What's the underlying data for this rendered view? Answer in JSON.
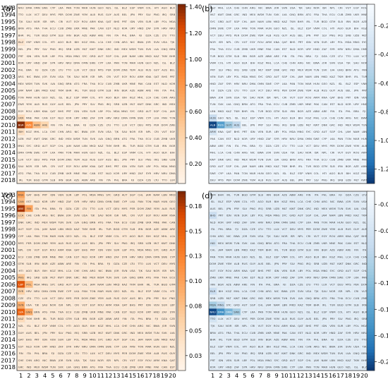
{
  "chart_data": [
    {
      "type": "heatmap",
      "panel_label": "(a)",
      "colormap": "Oranges",
      "colorbar_ticks": [
        "0.20",
        "0.40",
        "0.60",
        "0.80",
        "1.00",
        "1.20",
        "1.40"
      ],
      "colorbar_tick_values": [
        0.2,
        0.4,
        0.6,
        0.8,
        1.0,
        1.2,
        1.4
      ],
      "vmin": 0.05,
      "vmax": 1.42,
      "rows": [
        "1993",
        "1994",
        "1995",
        "1996",
        "1997",
        "1998",
        "1999",
        "2000",
        "2001",
        "2002",
        "2003",
        "2004",
        "2005",
        "2006",
        "2007",
        "2008",
        "2009",
        "2010",
        "2011",
        "2012",
        "2013",
        "2014",
        "2015",
        "2016",
        "2017",
        "2018"
      ],
      "cols": [
        "1",
        "2",
        "3",
        "4",
        "5",
        "6",
        "7",
        "8",
        "9",
        "10",
        "11",
        "12",
        "13",
        "14",
        "15",
        "16",
        "17",
        "18",
        "19",
        "20"
      ],
      "hot_cells": [
        {
          "row": "2010",
          "col": "1",
          "value": 1.4
        },
        {
          "row": "2010",
          "col": "2",
          "value": 0.9
        },
        {
          "row": "2010",
          "col": "3",
          "value": 0.55
        },
        {
          "row": "2010",
          "col": "4",
          "value": 0.4
        },
        {
          "row": "2009",
          "col": "1",
          "value": 0.35
        },
        {
          "row": "2011",
          "col": "1",
          "value": 0.3
        },
        {
          "row": "1998",
          "col": "1",
          "value": 0.25
        }
      ],
      "base_value": 0.12
    },
    {
      "type": "heatmap",
      "panel_label": "(b)",
      "colormap": "Blues_r",
      "colorbar_ticks": [
        "-0.20",
        "-0.40",
        "-0.60",
        "-0.80",
        "-1.00",
        "-1.20"
      ],
      "colorbar_tick_values": [
        -0.2,
        -0.4,
        -0.6,
        -0.8,
        -1.0,
        -1.2
      ],
      "vmin": -1.3,
      "vmax": -0.05,
      "rows": [
        "1993",
        "1994",
        "1995",
        "1996",
        "1997",
        "1998",
        "1999",
        "2000",
        "2001",
        "2002",
        "2003",
        "2004",
        "2005",
        "2006",
        "2007",
        "2008",
        "2009",
        "2010",
        "2011",
        "2012",
        "2013",
        "2014",
        "2015",
        "2016",
        "2017",
        "2018"
      ],
      "cols": [
        "1",
        "2",
        "3",
        "4",
        "5",
        "6",
        "7",
        "8",
        "9",
        "10",
        "11",
        "12",
        "13",
        "14",
        "15",
        "16",
        "17",
        "18",
        "19",
        "20"
      ],
      "hot_cells": [
        {
          "row": "2010",
          "col": "1",
          "value": -1.25
        },
        {
          "row": "2010",
          "col": "2",
          "value": -0.9
        },
        {
          "row": "2010",
          "col": "3",
          "value": -0.6
        },
        {
          "row": "2010",
          "col": "4",
          "value": -0.45
        },
        {
          "row": "2009",
          "col": "1",
          "value": -0.4
        },
        {
          "row": "2011",
          "col": "1",
          "value": -0.3
        }
      ],
      "base_value": -0.12
    },
    {
      "type": "heatmap",
      "panel_label": "(c)",
      "colormap": "Oranges",
      "colorbar_ticks": [
        "0.03",
        "0.05",
        "0.08",
        "0.10",
        "0.13",
        "0.15",
        "0.18"
      ],
      "colorbar_tick_values": [
        0.025,
        0.05,
        0.075,
        0.1,
        0.125,
        0.15,
        0.175
      ],
      "vmin": 0.01,
      "vmax": 0.19,
      "rows": [
        "1993",
        "1994",
        "1995",
        "1996",
        "1997",
        "1998",
        "1999",
        "2000",
        "2001",
        "2002",
        "2003",
        "2004",
        "2005",
        "2006",
        "2007",
        "2008",
        "2009",
        "2010",
        "2011",
        "2012",
        "2013",
        "2014",
        "2015",
        "2016",
        "2017",
        "2018"
      ],
      "cols": [
        "1",
        "2",
        "3",
        "4",
        "5",
        "6",
        "7",
        "8",
        "9",
        "10",
        "11",
        "12",
        "13",
        "14",
        "15",
        "16",
        "17",
        "18",
        "19",
        "20"
      ],
      "hot_cells": [
        {
          "row": "1993",
          "col": "1",
          "value": 0.1
        },
        {
          "row": "1994",
          "col": "1",
          "value": 0.08
        },
        {
          "row": "1995",
          "col": "1",
          "value": 0.18
        },
        {
          "row": "1995",
          "col": "2",
          "value": 0.1
        },
        {
          "row": "1996",
          "col": "1",
          "value": 0.06
        },
        {
          "row": "2005",
          "col": "1",
          "value": 0.07
        },
        {
          "row": "2006",
          "col": "1",
          "value": 0.16
        },
        {
          "row": "2006",
          "col": "2",
          "value": 0.08
        },
        {
          "row": "2007",
          "col": "1",
          "value": 0.06
        },
        {
          "row": "2009",
          "col": "1",
          "value": 0.09
        },
        {
          "row": "2010",
          "col": "1",
          "value": 0.15
        },
        {
          "row": "2010",
          "col": "2",
          "value": 0.09
        },
        {
          "row": "2011",
          "col": "1",
          "value": 0.05
        }
      ],
      "base_value": 0.03
    },
    {
      "type": "heatmap",
      "panel_label": "(d)",
      "colormap": "Blues_r",
      "colorbar_ticks": [
        "-0.02",
        "-0.05",
        "-0.08",
        "-0.11",
        "-0.14",
        "-0.17",
        "-0.20"
      ],
      "colorbar_tick_values": [
        -0.02,
        -0.05,
        -0.08,
        -0.11,
        -0.14,
        -0.17,
        -0.2
      ],
      "vmin": -0.21,
      "vmax": -0.005,
      "rows": [
        "1993",
        "1994",
        "1995",
        "1996",
        "1997",
        "1998",
        "1999",
        "2000",
        "2001",
        "2002",
        "2003",
        "2004",
        "2005",
        "2006",
        "2007",
        "2008",
        "2009",
        "2010",
        "2011",
        "2012",
        "2013",
        "2014",
        "2015",
        "2016",
        "2017",
        "2018"
      ],
      "cols": [
        "1",
        "2",
        "3",
        "4",
        "5",
        "6",
        "7",
        "8",
        "9",
        "10",
        "11",
        "12",
        "13",
        "14",
        "15",
        "16",
        "17",
        "18",
        "19",
        "20"
      ],
      "hot_cells": [
        {
          "row": "2010",
          "col": "1",
          "value": -0.2
        },
        {
          "row": "2010",
          "col": "2",
          "value": -0.16
        },
        {
          "row": "2010",
          "col": "3",
          "value": -0.12
        },
        {
          "row": "2010",
          "col": "4",
          "value": -0.09
        },
        {
          "row": "2009",
          "col": "1",
          "value": -0.09
        },
        {
          "row": "2009",
          "col": "2",
          "value": -0.07
        },
        {
          "row": "1996",
          "col": "1",
          "value": -0.06
        },
        {
          "row": "2000",
          "col": "1",
          "value": -0.05
        },
        {
          "row": "2007",
          "col": "1",
          "value": -0.06
        },
        {
          "row": "2011",
          "col": "1",
          "value": -0.05
        }
      ],
      "base_value": -0.03
    }
  ],
  "cell_text_palette": [
    "NRU",
    "USA",
    "KAZ",
    "RUS",
    "PAK",
    "KGZ",
    "MNG",
    "TTO",
    "GNQ",
    "NZL",
    "KNA",
    "ABW",
    "MLT",
    "DMA",
    "TJK",
    "TKM",
    "GUY",
    "CAN",
    "MHL",
    "SYC",
    "LUX",
    "BRN",
    "ISL",
    "QAT",
    "ARE",
    "KWT",
    "OMN",
    "SAU",
    "BHR",
    "AUS",
    "EST",
    "LCA",
    "GRD",
    "VCT",
    "ATG",
    "BLZ",
    "BHS",
    "FIN",
    "DNK",
    "SWE",
    "NOR",
    "IRL",
    "BEL",
    "NLD",
    "CHE",
    "AUT",
    "DEU",
    "FRA",
    "ESP",
    "PRT",
    "ITA",
    "GRC",
    "CYP",
    "ISR",
    "TUR",
    "JPN",
    "KOR",
    "CHN",
    "SGP",
    "MYS",
    "THA",
    "VNM",
    "IDN",
    "PHL",
    "IND",
    "LKA",
    "NPL",
    "BGD",
    "PRY",
    "URY",
    "ARG",
    "CHL",
    "PER",
    "ECU",
    "COL",
    "VEN",
    "BRA",
    "MEX",
    "PAN",
    "CRI",
    "GTM",
    "SLV",
    "HND",
    "NIC",
    "JAM",
    "DOM",
    "CUB",
    "HTI",
    "SUR",
    "FJI",
    "WSM",
    "TON",
    "VUT",
    "SLB",
    "PNG",
    "ZAF",
    "BWA",
    "NAM",
    "ZWE",
    "ZMB",
    "AGO",
    "LBY",
    "DZA",
    "TUN",
    "MAR",
    "EGY",
    "IRN",
    "IRQ",
    "SYR",
    "JOR",
    "LBN",
    "YEM",
    "UKR",
    "BLR",
    "POL",
    "CZE",
    "SVK",
    "HUN",
    "ROU",
    "BGR",
    "SRB",
    "HRV",
    "SVN",
    "MKD",
    "ALB",
    "MNE",
    "BIH",
    "MDA",
    "LTU",
    "LVA",
    "GEO",
    "ARM",
    "AZE",
    "UZB"
  ]
}
